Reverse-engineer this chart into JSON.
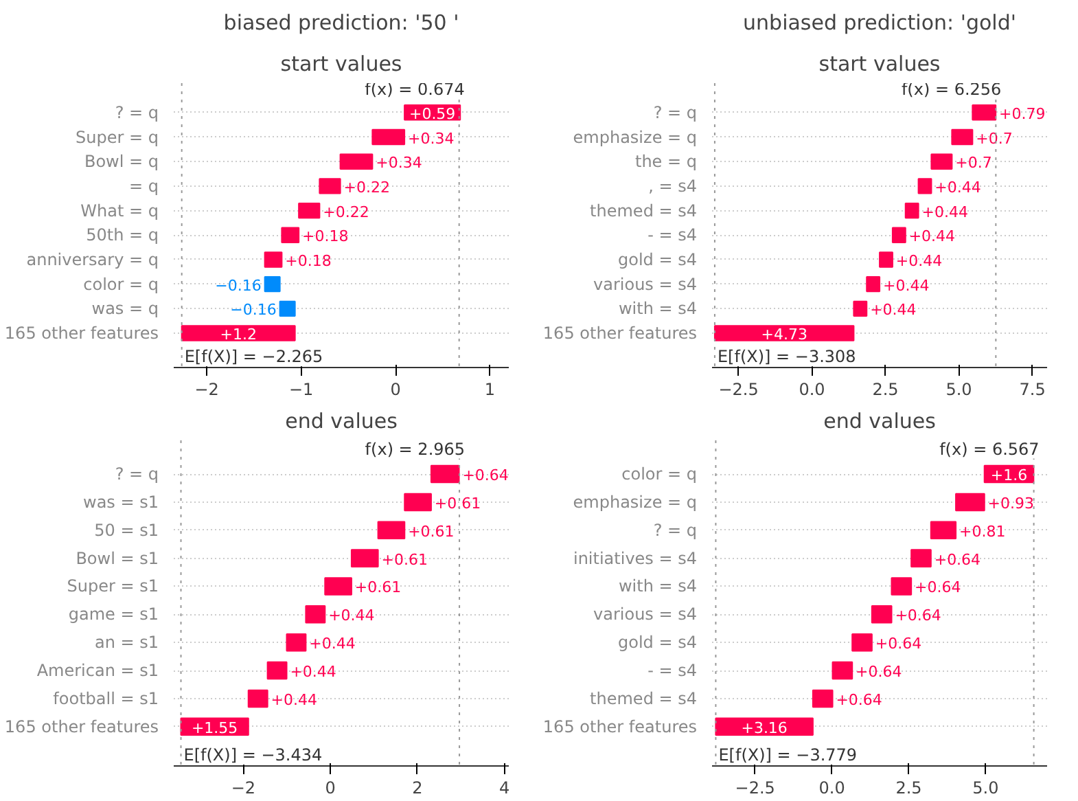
{
  "chart_data": [
    {
      "type": "bar",
      "orientation": "horizontal",
      "title": "biased prediction: '50 '",
      "subtitle": "start values",
      "grid": "y",
      "categories": [
        "? = q",
        "Super = q",
        "Bowl = q",
        "= q",
        "What = q",
        "50th = q",
        "anniversary = q",
        "color = q",
        "was = q",
        "165 other features"
      ],
      "values": [
        0.59,
        0.34,
        0.34,
        0.22,
        0.22,
        0.18,
        0.18,
        -0.16,
        -0.16,
        1.2
      ],
      "base": [
        0.095,
        -0.245,
        -0.585,
        -0.805,
        -1.025,
        -1.205,
        -1.385,
        -1.225,
        -1.065,
        -2.265
      ],
      "colors": [
        "#ff0051",
        "#ff0051",
        "#ff0051",
        "#ff0051",
        "#ff0051",
        "#ff0051",
        "#ff0051",
        "#008bfb",
        "#008bfb",
        "#ff0051"
      ],
      "value_labels": [
        "+0.59",
        "+0.34",
        "+0.34",
        "+0.22",
        "+0.22",
        "+0.18",
        "+0.18",
        "−0.16",
        "−0.16",
        "+1.2"
      ],
      "xlim": [
        -2.35,
        1.2
      ],
      "xticks": [
        {
          "value": -2,
          "label": "−2"
        },
        {
          "value": -1,
          "label": "−1"
        },
        0,
        1
      ],
      "ref_lines": [
        {
          "axis": "x",
          "value": -2.265,
          "label": "E[f(X)] = −2.265",
          "color": "#999999",
          "line_style": "dotted"
        },
        {
          "axis": "x",
          "value": 0.674,
          "label": "f(x) = 0.674",
          "color": "#999999",
          "line_style": "dotted"
        }
      ]
    },
    {
      "type": "bar",
      "orientation": "horizontal",
      "title": "unbiased prediction: 'gold'",
      "subtitle": "start values",
      "grid": "y",
      "categories": [
        "? = q",
        "emphasize = q",
        "the = q",
        ", = s4",
        "themed = s4",
        "- = s4",
        "gold = s4",
        "various = s4",
        "with = s4",
        "165 other features"
      ],
      "values": [
        0.79,
        0.7,
        0.7,
        0.44,
        0.44,
        0.44,
        0.44,
        0.44,
        0.44,
        4.73
      ],
      "base": [
        5.462,
        4.762,
        4.062,
        3.622,
        3.182,
        2.742,
        2.302,
        1.862,
        1.422,
        -3.308
      ],
      "colors": [
        "#ff0051",
        "#ff0051",
        "#ff0051",
        "#ff0051",
        "#ff0051",
        "#ff0051",
        "#ff0051",
        "#ff0051",
        "#ff0051",
        "#ff0051"
      ],
      "value_labels": [
        "+0.79",
        "+0.7",
        "+0.7",
        "+0.44",
        "+0.44",
        "+0.44",
        "+0.44",
        "+0.44",
        "+0.44",
        "+4.73"
      ],
      "xlim": [
        -3.4,
        8.0
      ],
      "xticks": [
        {
          "value": -2.5,
          "label": "−2.5"
        },
        {
          "value": 0,
          "label": "0.0"
        },
        {
          "value": 2.5,
          "label": "2.5"
        },
        {
          "value": 5,
          "label": "5.0"
        },
        {
          "value": 7.5,
          "label": "7.5"
        }
      ],
      "ref_lines": [
        {
          "axis": "x",
          "value": -3.308,
          "label": "E[f(X)] = −3.308",
          "color": "#999999",
          "line_style": "dotted"
        },
        {
          "axis": "x",
          "value": 6.256,
          "label": "f(x) = 6.256",
          "color": "#999999",
          "line_style": "dotted"
        }
      ]
    },
    {
      "type": "bar",
      "orientation": "horizontal",
      "title": "end values",
      "grid": "y",
      "categories": [
        "? = q",
        "was = s1",
        "50 = s1",
        "Bowl = s1",
        "Super = s1",
        "game = s1",
        "an = s1",
        "American = s1",
        "football = s1",
        "165 other features"
      ],
      "values": [
        0.64,
        0.61,
        0.61,
        0.61,
        0.61,
        0.44,
        0.44,
        0.44,
        0.44,
        1.55
      ],
      "base": [
        2.316,
        1.706,
        1.096,
        0.486,
        -0.124,
        -0.564,
        -1.004,
        -1.444,
        -1.884,
        -3.434
      ],
      "colors": [
        "#ff0051",
        "#ff0051",
        "#ff0051",
        "#ff0051",
        "#ff0051",
        "#ff0051",
        "#ff0051",
        "#ff0051",
        "#ff0051",
        "#ff0051"
      ],
      "value_labels": [
        "+0.64",
        "+0.61",
        "+0.61",
        "+0.61",
        "+0.61",
        "+0.44",
        "+0.44",
        "+0.44",
        "+0.44",
        "+1.55"
      ],
      "xlim": [
        -3.6,
        4.1
      ],
      "xticks": [
        {
          "value": -2,
          "label": "−2"
        },
        0,
        2,
        4
      ],
      "ref_lines": [
        {
          "axis": "x",
          "value": -3.434,
          "label": "E[f(X)] = −3.434",
          "color": "#999999",
          "line_style": "dotted"
        },
        {
          "axis": "x",
          "value": 2.965,
          "label": "f(x) = 2.965",
          "color": "#999999",
          "line_style": "dotted"
        }
      ]
    },
    {
      "type": "bar",
      "orientation": "horizontal",
      "title": "end values",
      "grid": "y",
      "categories": [
        "color = q",
        "emphasize = q",
        "? = q",
        "initiatives = s4",
        "with = s4",
        "various = s4",
        "gold = s4",
        "- = s4",
        "themed = s4",
        "165 other features"
      ],
      "values": [
        1.6,
        0.93,
        0.81,
        0.64,
        0.64,
        0.64,
        0.64,
        0.64,
        0.64,
        3.16
      ],
      "base": [
        4.961,
        4.031,
        3.221,
        2.581,
        1.941,
        1.301,
        0.661,
        0.021,
        -0.619,
        -3.779
      ],
      "colors": [
        "#ff0051",
        "#ff0051",
        "#ff0051",
        "#ff0051",
        "#ff0051",
        "#ff0051",
        "#ff0051",
        "#ff0051",
        "#ff0051",
        "#ff0051"
      ],
      "value_labels": [
        "+1.6",
        "+0.93",
        "+0.81",
        "+0.64",
        "+0.64",
        "+0.64",
        "+0.64",
        "+0.64",
        "+0.64",
        "+3.16"
      ],
      "xlim": [
        -3.9,
        7.0
      ],
      "xticks": [
        {
          "value": -2.5,
          "label": "−2.5"
        },
        {
          "value": 0,
          "label": "0.0"
        },
        {
          "value": 2.5,
          "label": "2.5"
        },
        {
          "value": 5,
          "label": "5.0"
        }
      ],
      "ref_lines": [
        {
          "axis": "x",
          "value": -3.779,
          "label": "E[f(X)] = −3.779",
          "color": "#999999",
          "line_style": "dotted"
        },
        {
          "axis": "x",
          "value": 6.567,
          "label": "f(x) = 6.567",
          "color": "#999999",
          "line_style": "dotted"
        }
      ]
    }
  ]
}
